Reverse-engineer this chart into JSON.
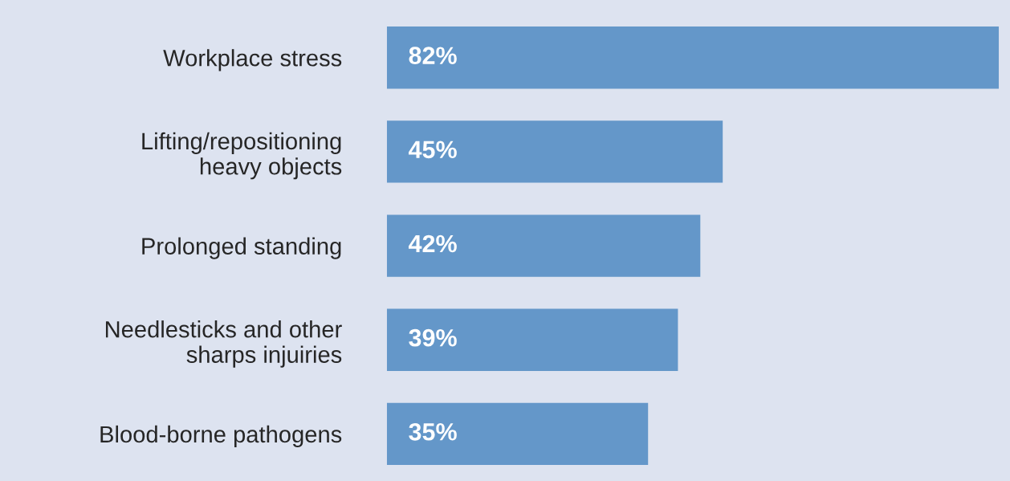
{
  "chart_data": {
    "type": "bar",
    "orientation": "horizontal",
    "categories": [
      "Workplace stress",
      "Lifting/repositioning\nheavy objects",
      "Prolonged standing",
      "Needlesticks and other\nsharps injuiries",
      "Blood-borne pathogens"
    ],
    "values": [
      82,
      45,
      42,
      39,
      35
    ],
    "value_labels": [
      "82%",
      "45%",
      "42%",
      "39%",
      "35%"
    ],
    "color": "#6497c9",
    "grid": false,
    "legend": false
  }
}
